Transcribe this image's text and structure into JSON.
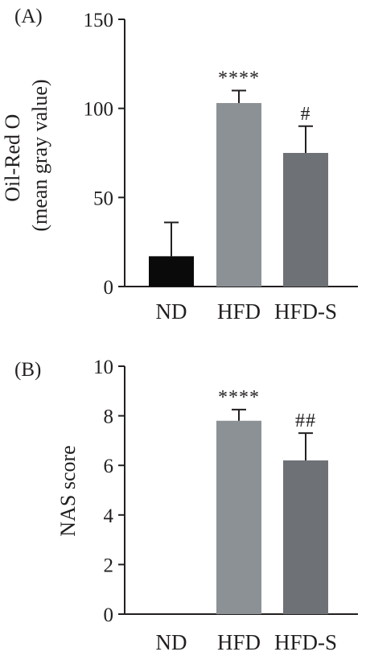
{
  "chart_data": [
    {
      "type": "bar",
      "panel_label": "(A)",
      "ylabel_lines": [
        "Oil-Red O",
        "(mean gray value)"
      ],
      "xlabel": "",
      "categories": [
        "ND",
        "HFD",
        "HFD-S"
      ],
      "values": [
        17,
        103,
        75
      ],
      "error_upper": [
        36,
        110,
        90
      ],
      "significance": [
        "",
        "****",
        "#"
      ],
      "ylim": [
        0,
        150
      ],
      "yticks": [
        0,
        50,
        100,
        150
      ],
      "bar_colors": [
        "#0a0a0a",
        "#8c9196",
        "#6e7176"
      ],
      "grid": false,
      "legend": "none"
    },
    {
      "type": "bar",
      "panel_label": "(B)",
      "ylabel_lines": [
        "NAS score"
      ],
      "xlabel": "",
      "categories": [
        "ND",
        "HFD",
        "HFD-S"
      ],
      "values": [
        0,
        7.8,
        6.2
      ],
      "error_upper": [
        0,
        8.25,
        7.3
      ],
      "significance": [
        "",
        "****",
        "##"
      ],
      "ylim": [
        0,
        10
      ],
      "yticks": [
        0,
        2,
        4,
        6,
        8,
        10
      ],
      "bar_colors": [
        "#0a0a0a",
        "#8c9196",
        "#6e7176"
      ],
      "grid": false,
      "legend": "none"
    }
  ]
}
